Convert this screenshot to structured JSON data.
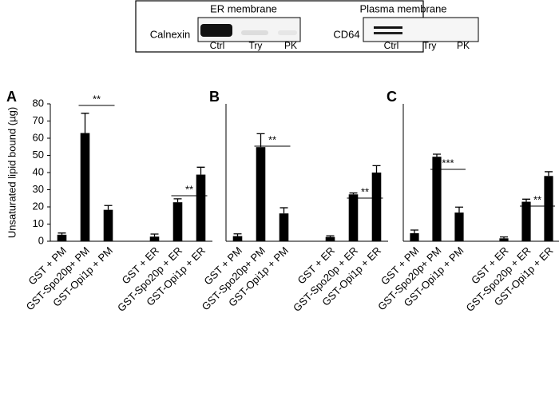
{
  "blot": {
    "left": {
      "title": "ER membrane",
      "protein": "Calnexin",
      "lanes": [
        "Ctrl",
        "Try",
        "PK"
      ]
    },
    "right": {
      "title": "Plasma membrane",
      "protein": "CD64",
      "lanes": [
        "Ctrl",
        "Try",
        "PK"
      ]
    }
  },
  "chart_data": [
    {
      "type": "bar",
      "panel_label": "A",
      "y_label": "Unsaturated lipid bound (µg)",
      "color": "#000000",
      "categories": [
        "GST + PM",
        "GST-Spo20p+ PM",
        "GST-Opi1p + PM",
        null,
        "GST + ER",
        "GST-Spo20p + ER",
        "GST-Opi1p + ER"
      ],
      "values": [
        3.8,
        63,
        18.3,
        null,
        2.7,
        22.7,
        38.8
      ],
      "errors": [
        1,
        11.5,
        2.5,
        null,
        1.5,
        2,
        4.3
      ],
      "ylim": [
        0,
        80
      ],
      "yticks": [
        0,
        10,
        20,
        30,
        40,
        50,
        60,
        70,
        80
      ],
      "annotations": [
        {
          "text": "**"
        },
        {
          "text": "**"
        }
      ]
    },
    {
      "type": "bar",
      "panel_label": "B",
      "color": "#000000",
      "categories": [
        "GST + PM",
        "GST-Spo20p+ PM",
        "GST-Opi1p + PM",
        null,
        "GST + ER",
        "GST-Spo20p + ER",
        "GST-Opi1p + ER"
      ],
      "values": [
        3,
        54.8,
        16.2,
        null,
        2.5,
        27.3,
        40
      ],
      "errors": [
        1.3,
        7.8,
        3.3,
        null,
        0.7,
        0.8,
        4
      ],
      "ylim": [
        0,
        80
      ],
      "annotations": [
        {
          "text": "**"
        },
        {
          "text": "**"
        }
      ]
    },
    {
      "type": "bar",
      "panel_label": "C",
      "color": "#000000",
      "categories": [
        "GST + PM",
        "GST-Spo20p+ PM",
        "GST-Opi1p + PM",
        null,
        "GST + ER",
        "GST-Spo20p + ER",
        "GST-Opi1p + ER"
      ],
      "values": [
        4.7,
        49.2,
        16.7,
        null,
        1.7,
        23,
        38
      ],
      "errors": [
        1.8,
        1.5,
        3.2,
        null,
        0.8,
        1.5,
        2.5
      ],
      "ylim": [
        0,
        80
      ],
      "annotations": [
        {
          "text": "***"
        },
        {
          "text": "**"
        }
      ]
    }
  ]
}
